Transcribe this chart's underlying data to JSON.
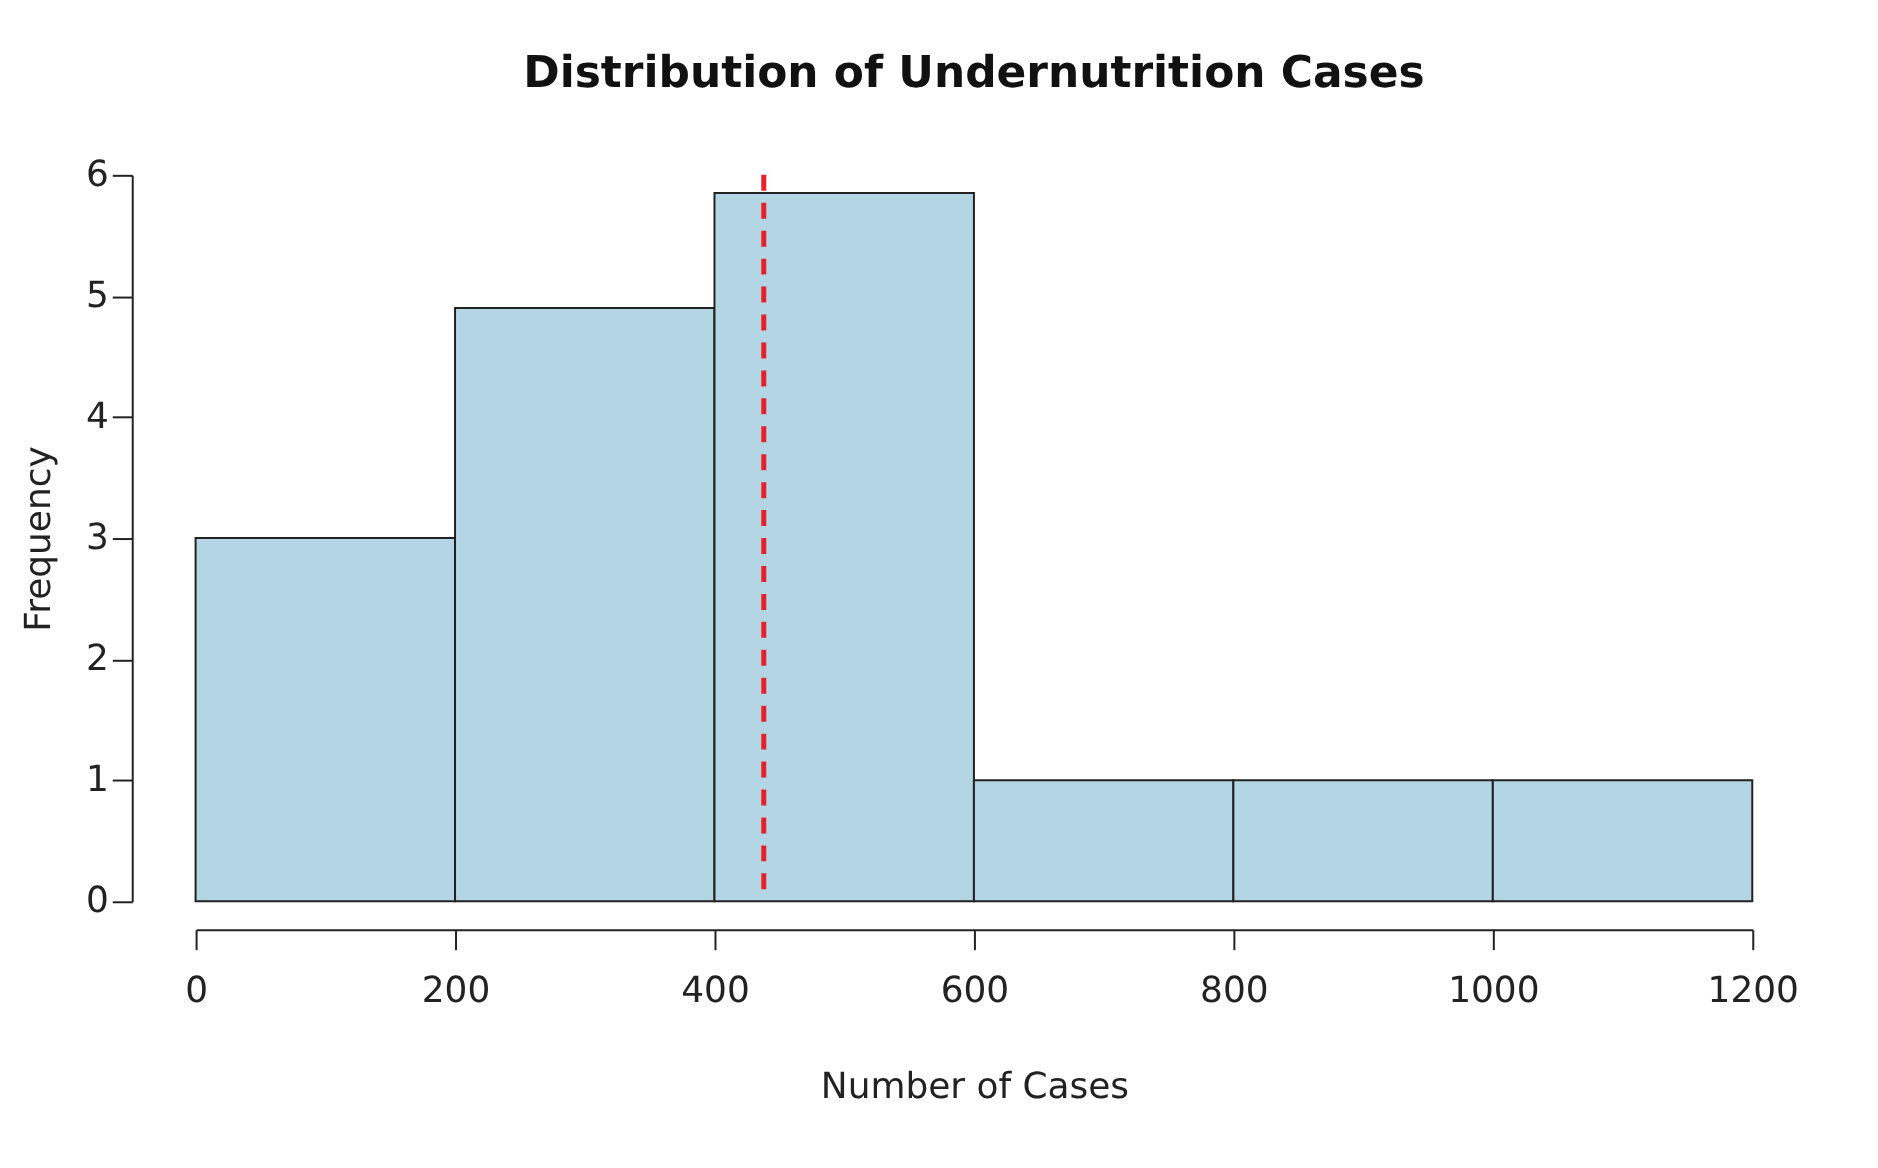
{
  "chart_data": {
    "type": "histogram",
    "title": "Distribution of Undernutrition Cases",
    "xlabel": "Number of Cases",
    "ylabel": "Frequency",
    "bins": [
      0,
      200,
      400,
      600,
      800,
      1000,
      1200
    ],
    "values": [
      3,
      4.9,
      5.85,
      1,
      1,
      1
    ],
    "color": "#b4d6e4",
    "xlim": [
      0,
      1200
    ],
    "xticks": [
      0,
      200,
      400,
      600,
      800,
      1000,
      1200
    ],
    "ylim": [
      0,
      6
    ],
    "yticks": [
      0,
      1,
      2,
      3,
      4,
      5,
      6
    ],
    "grid": false,
    "ref_lines": [
      {
        "axis": "x",
        "value": 438,
        "color": "#e8202a",
        "line_style": "dashed"
      }
    ]
  }
}
